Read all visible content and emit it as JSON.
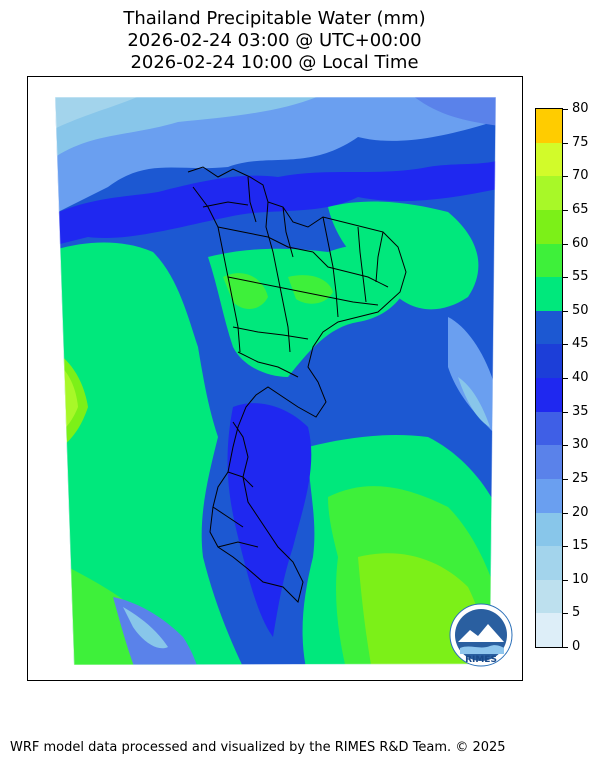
{
  "title": {
    "line1": "Thailand Precipitable Water (mm)",
    "line2": "2026-02-24 03:00 @ UTC+00:00",
    "line3": "2026-02-24 10:00 @ Local Time"
  },
  "colorbar": {
    "ticks": [
      0,
      5,
      10,
      15,
      20,
      25,
      30,
      35,
      40,
      45,
      50,
      55,
      60,
      65,
      70,
      75,
      80
    ],
    "colors": [
      "#ddeef8",
      "#bde0ee",
      "#a3d4ec",
      "#88c6ea",
      "#6a9ff0",
      "#5a82ea",
      "#3f5fe6",
      "#1f28f0",
      "#1c3ed8",
      "#1c58d2",
      "#00e87c",
      "#3ef03a",
      "#7cf018",
      "#a8f828",
      "#d2fb2a",
      "#fff300",
      "#ffcc00"
    ]
  },
  "logo": {
    "text": "RIMES"
  },
  "footer": "WRF model data processed and visualized by the RIMES R&D Team. © 2025"
}
